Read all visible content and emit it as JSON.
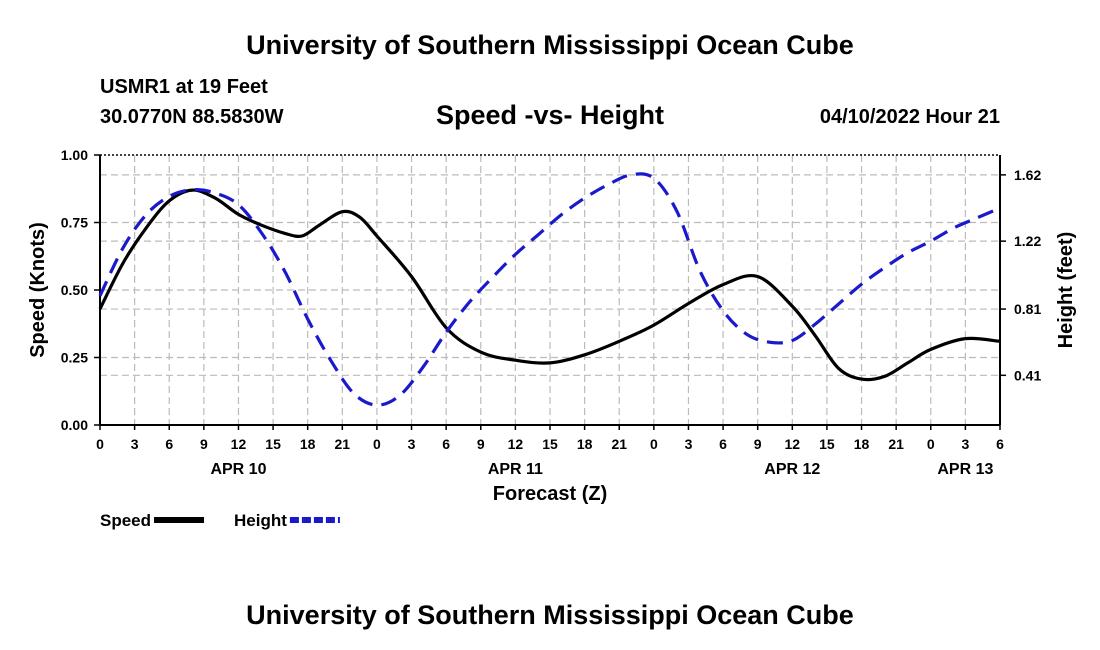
{
  "header": {
    "title": "University of Southern Mississippi Ocean Cube",
    "station": "USMR1 at 19 Feet",
    "coords": "30.0770N  88.5830W",
    "chart_title": "Speed -vs- Height",
    "datetime": "04/10/2022 Hour 21",
    "bottom_title": "University of Southern Mississippi Ocean Cube"
  },
  "colors": {
    "speed": "#000000",
    "height": "#1a1acc",
    "grid": "#bbbbbb"
  },
  "chart_data": {
    "type": "line",
    "title": "Speed -vs- Height",
    "xlabel": "Forecast (Z)",
    "ylabel": "Speed (Knots)",
    "y2label": "Height (feet)",
    "x_unit": "hours since APR 10 00Z",
    "xlim": [
      0,
      78
    ],
    "ylim": [
      0,
      1.0
    ],
    "y2lim": [
      0.11,
      1.74
    ],
    "x_ticks": [
      0,
      3,
      6,
      9,
      12,
      15,
      18,
      21,
      24,
      27,
      30,
      33,
      36,
      39,
      42,
      45,
      48,
      51,
      54,
      57,
      60,
      63,
      66,
      69,
      72,
      75,
      78
    ],
    "x_tick_labels": [
      "0",
      "3",
      "6",
      "9",
      "12",
      "15",
      "18",
      "21",
      "0",
      "3",
      "6",
      "9",
      "12",
      "15",
      "18",
      "21",
      "0",
      "3",
      "6",
      "9",
      "12",
      "15",
      "18",
      "21",
      "0",
      "3",
      "6"
    ],
    "day_labels": [
      {
        "x": 12,
        "label": "APR 10"
      },
      {
        "x": 36,
        "label": "APR 11"
      },
      {
        "x": 60,
        "label": "APR 12"
      },
      {
        "x": 75,
        "label": "APR 13"
      }
    ],
    "y_ticks": [
      0,
      0.25,
      0.5,
      0.75,
      1.0
    ],
    "y_tick_labels": [
      "0.00",
      "0.25",
      "0.50",
      "0.75",
      "1.00"
    ],
    "y2_ticks": [
      0.41,
      0.81,
      1.22,
      1.62
    ],
    "y2_tick_labels": [
      "0.41",
      "0.81",
      "1.22",
      "1.62"
    ],
    "series": [
      {
        "name": "Speed",
        "axis": "left",
        "style": "solid",
        "x": [
          0,
          2,
          4,
          6,
          8,
          10,
          12,
          14,
          16,
          17.5,
          19,
          21,
          22.5,
          24,
          27,
          30,
          33,
          36,
          39,
          42,
          45,
          48,
          51,
          54,
          57,
          60,
          62,
          64,
          66,
          68,
          70,
          72,
          75,
          78
        ],
        "y": [
          0.43,
          0.6,
          0.73,
          0.83,
          0.87,
          0.84,
          0.78,
          0.74,
          0.71,
          0.7,
          0.74,
          0.79,
          0.77,
          0.7,
          0.55,
          0.36,
          0.27,
          0.24,
          0.23,
          0.26,
          0.31,
          0.37,
          0.45,
          0.52,
          0.55,
          0.44,
          0.33,
          0.21,
          0.17,
          0.18,
          0.23,
          0.28,
          0.32,
          0.31
        ]
      },
      {
        "name": "Height",
        "axis": "right",
        "style": "dashed",
        "x": [
          0,
          2,
          4,
          6,
          8,
          10,
          12,
          14,
          16,
          18,
          20,
          22,
          24,
          26,
          28,
          30,
          32,
          34,
          36,
          38,
          40,
          42,
          44,
          46,
          48,
          50,
          52,
          54,
          56,
          58,
          60,
          62,
          64,
          66,
          68,
          70,
          72,
          74,
          76,
          78
        ],
        "y": [
          0.89,
          1.18,
          1.38,
          1.49,
          1.53,
          1.51,
          1.44,
          1.27,
          1.04,
          0.75,
          0.5,
          0.3,
          0.23,
          0.29,
          0.46,
          0.67,
          0.85,
          1.0,
          1.14,
          1.26,
          1.38,
          1.48,
          1.56,
          1.62,
          1.6,
          1.4,
          1.04,
          0.8,
          0.66,
          0.61,
          0.62,
          0.72,
          0.84,
          0.96,
          1.06,
          1.15,
          1.22,
          1.3,
          1.36,
          1.42
        ]
      }
    ],
    "legend": [
      {
        "label": "Speed",
        "color": "#000000",
        "dash": false
      },
      {
        "label": "Height",
        "color": "#1a1acc",
        "dash": true
      }
    ]
  }
}
